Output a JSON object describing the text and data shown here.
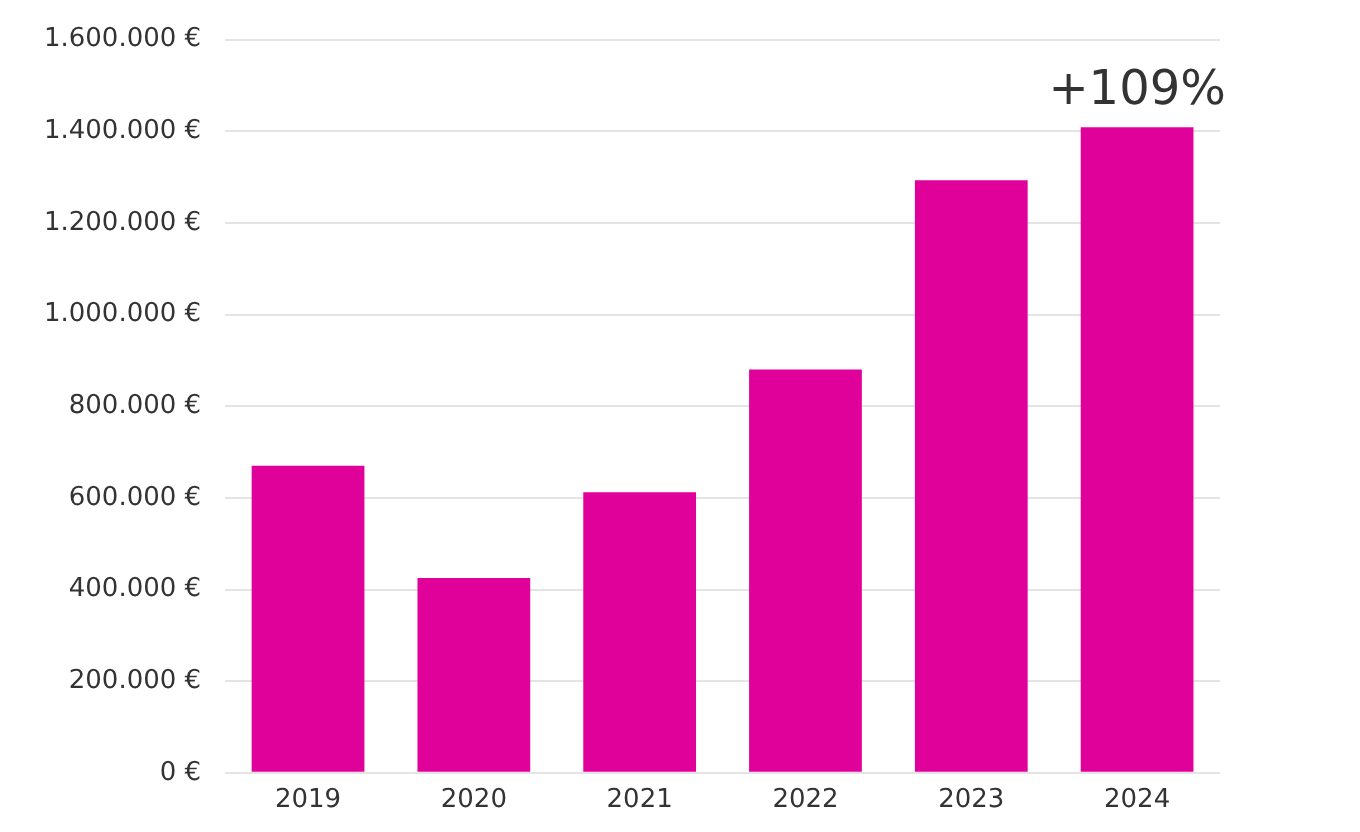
{
  "chart_data": {
    "type": "bar",
    "categories": [
      "2019",
      "2020",
      "2021",
      "2022",
      "2023",
      "2024"
    ],
    "values": [
      670000,
      425000,
      612000,
      880000,
      1293000,
      1409000
    ],
    "color": "#e0009a",
    "ylim": [
      0,
      1600000
    ],
    "yticks": [
      {
        "value": 0,
        "label": "0 €"
      },
      {
        "value": 200000,
        "label": "200.000 €"
      },
      {
        "value": 400000,
        "label": "400.000 €"
      },
      {
        "value": 600000,
        "label": "600.000 €"
      },
      {
        "value": 800000,
        "label": "800.000 €"
      },
      {
        "value": 1000000,
        "label": "1.000.000 €"
      },
      {
        "value": 1200000,
        "label": "1.200.000 €"
      },
      {
        "value": 1400000,
        "label": "1.400.000 €"
      },
      {
        "value": 1600000,
        "label": "1.600.000 €"
      }
    ],
    "grid": "y",
    "annotations": [
      {
        "text": "+109%",
        "x": "2024",
        "y": 1409000
      }
    ]
  }
}
